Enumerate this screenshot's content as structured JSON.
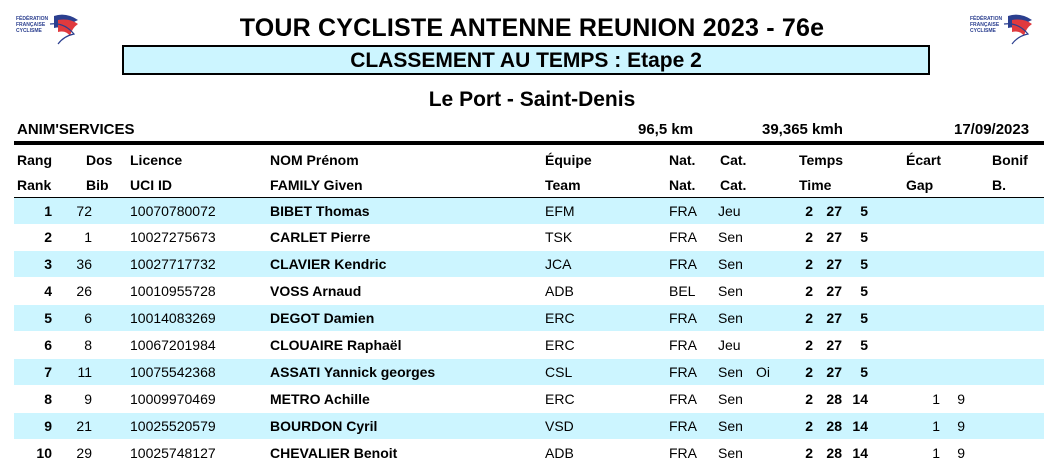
{
  "header": {
    "title": "TOUR CYCLISTE ANTENNE REUNION 2023 - 76e",
    "subtitle": "CLASSEMENT AU TEMPS : Etape 2",
    "route": "Le Port - Saint-Denis"
  },
  "logos": {
    "left_text": "FÉDÉRATION FRANÇAISE CYCLISME",
    "right_text": "FÉDÉRATION FRANÇAISE CYCLISME"
  },
  "info": {
    "organizer": "ANIM'SERVICES",
    "distance": "96,5 km",
    "speed": "39,365 kmh",
    "date": "17/09/2023"
  },
  "columns": {
    "rank": [
      "Rang",
      "Rank"
    ],
    "bib": [
      "Dos",
      "Bib"
    ],
    "licence": [
      "Licence",
      "UCI ID"
    ],
    "name": [
      "NOM Prénom",
      "FAMILY Given"
    ],
    "team": [
      "Équipe",
      "Team"
    ],
    "nat": [
      "Nat.",
      "Nat."
    ],
    "cat": [
      "Cat.",
      "Cat."
    ],
    "time": [
      "Temps",
      "Time"
    ],
    "gap": [
      "Écart",
      "Gap"
    ],
    "bonus": [
      "Bonif",
      "B."
    ]
  },
  "rows": [
    {
      "rank": "1",
      "bib": "72",
      "licence": "10070780072",
      "name": "BIBET Thomas",
      "team": "EFM",
      "nat": "FRA",
      "cat": "Jeu",
      "extra": "",
      "time_h": "2",
      "time_m": "27",
      "time_s": "5",
      "gap_m": "",
      "gap_s": ""
    },
    {
      "rank": "2",
      "bib": "1",
      "licence": "10027275673",
      "name": "CARLET Pierre",
      "team": "TSK",
      "nat": "FRA",
      "cat": "Sen",
      "extra": "",
      "time_h": "2",
      "time_m": "27",
      "time_s": "5",
      "gap_m": "",
      "gap_s": ""
    },
    {
      "rank": "3",
      "bib": "36",
      "licence": "10027717732",
      "name": "CLAVIER Kendric",
      "team": "JCA",
      "nat": "FRA",
      "cat": "Sen",
      "extra": "",
      "time_h": "2",
      "time_m": "27",
      "time_s": "5",
      "gap_m": "",
      "gap_s": ""
    },
    {
      "rank": "4",
      "bib": "26",
      "licence": "10010955728",
      "name": "VOSS Arnaud",
      "team": "ADB",
      "nat": "BEL",
      "cat": "Sen",
      "extra": "",
      "time_h": "2",
      "time_m": "27",
      "time_s": "5",
      "gap_m": "",
      "gap_s": ""
    },
    {
      "rank": "5",
      "bib": "6",
      "licence": "10014083269",
      "name": "DEGOT Damien",
      "team": "ERC",
      "nat": "FRA",
      "cat": "Sen",
      "extra": "",
      "time_h": "2",
      "time_m": "27",
      "time_s": "5",
      "gap_m": "",
      "gap_s": ""
    },
    {
      "rank": "6",
      "bib": "8",
      "licence": "10067201984",
      "name": "CLOUAIRE Raphaël",
      "team": "ERC",
      "nat": "FRA",
      "cat": "Jeu",
      "extra": "",
      "time_h": "2",
      "time_m": "27",
      "time_s": "5",
      "gap_m": "",
      "gap_s": ""
    },
    {
      "rank": "7",
      "bib": "11",
      "licence": "10075542368",
      "name": "ASSATI Yannick georges",
      "team": "CSL",
      "nat": "FRA",
      "cat": "Sen",
      "extra": "Oi",
      "time_h": "2",
      "time_m": "27",
      "time_s": "5",
      "gap_m": "",
      "gap_s": ""
    },
    {
      "rank": "8",
      "bib": "9",
      "licence": "10009970469",
      "name": "METRO Achille",
      "team": "ERC",
      "nat": "FRA",
      "cat": "Sen",
      "extra": "",
      "time_h": "2",
      "time_m": "28",
      "time_s": "14",
      "gap_m": "1",
      "gap_s": "9"
    },
    {
      "rank": "9",
      "bib": "21",
      "licence": "10025520579",
      "name": "BOURDON Cyril",
      "team": "VSD",
      "nat": "FRA",
      "cat": "Sen",
      "extra": "",
      "time_h": "2",
      "time_m": "28",
      "time_s": "14",
      "gap_m": "1",
      "gap_s": "9"
    },
    {
      "rank": "10",
      "bib": "29",
      "licence": "10025748127",
      "name": "CHEVALIER Benoit",
      "team": "ADB",
      "nat": "FRA",
      "cat": "Sen",
      "extra": "",
      "time_h": "2",
      "time_m": "28",
      "time_s": "14",
      "gap_m": "1",
      "gap_s": "9"
    }
  ]
}
